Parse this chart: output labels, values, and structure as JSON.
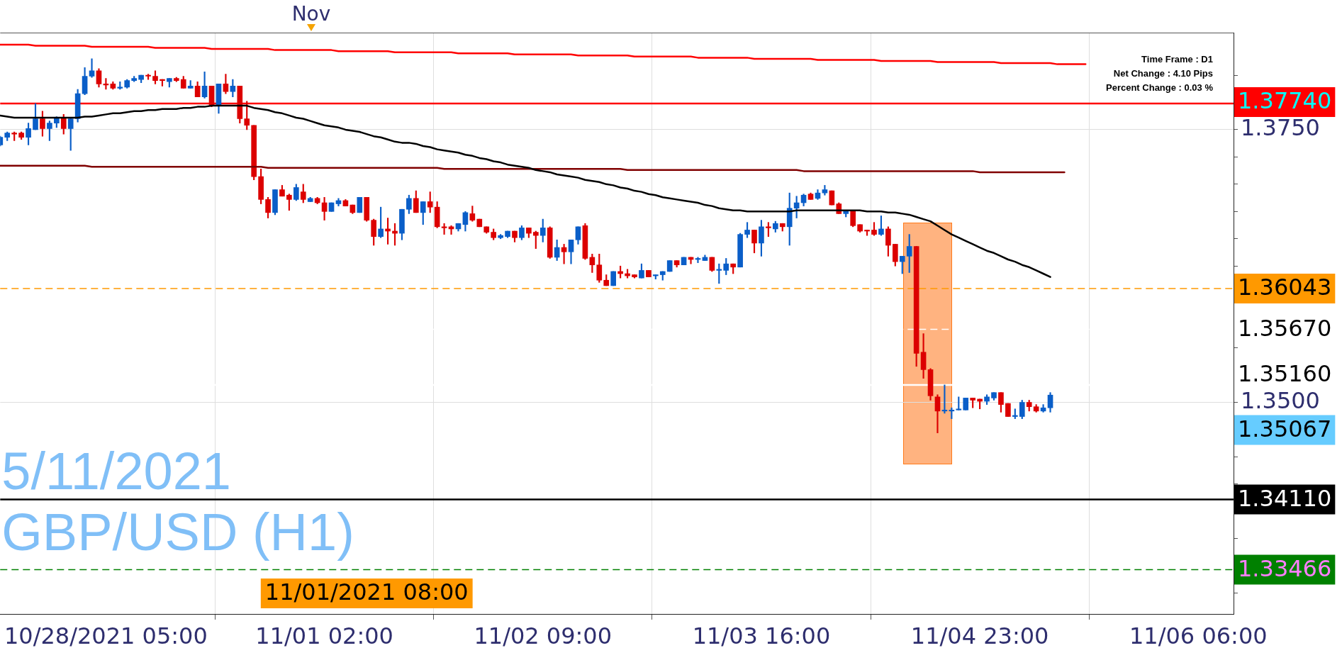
{
  "chart_data": {
    "type": "candlestick",
    "title": "GBP/USD (H1)",
    "subtitle": "5/11/2021",
    "annotations": [
      "Time Frame : D1",
      "Net Change : 4.10 Pips",
      "Percent Change : 0.03 %",
      "Nov",
      "1.35067"
    ],
    "categories": [
      null,
      null,
      null,
      null,
      null,
      null,
      null,
      null,
      null,
      null,
      null,
      null,
      null,
      null,
      null,
      "10/28/2021 05:00",
      null,
      null,
      null,
      null,
      null,
      null,
      null,
      null,
      null,
      null,
      null,
      null,
      null,
      null,
      null,
      null,
      null,
      null,
      null,
      null,
      null,
      null,
      null,
      null,
      null,
      null,
      null,
      null,
      null,
      null,
      "11/01 02:00",
      null,
      null,
      null,
      null,
      null,
      "11/01/2021 08:00",
      null,
      null,
      null,
      null,
      null,
      null,
      null,
      null,
      null,
      null,
      null,
      null,
      null,
      null,
      null,
      null,
      null,
      null,
      null,
      null,
      null,
      null,
      null,
      null,
      "11/02 09:00",
      null,
      null,
      null,
      null,
      null,
      null,
      null,
      null,
      null,
      null,
      null,
      null,
      null,
      null,
      null,
      null,
      null,
      null,
      null,
      null,
      null,
      null,
      null,
      null,
      null,
      null,
      null,
      null,
      null,
      null,
      "11/03 16:00",
      null,
      null,
      null,
      null,
      null,
      null,
      null,
      null,
      null,
      null,
      null,
      null,
      null,
      null,
      null,
      null,
      null,
      null,
      null,
      null,
      null,
      null,
      null,
      null,
      null,
      null,
      null,
      null,
      null,
      null,
      "11/04 23:00",
      null,
      null,
      null,
      null,
      null,
      null,
      null,
      null,
      null,
      null,
      null,
      null,
      null,
      null,
      null,
      null,
      null,
      null,
      null,
      null,
      null,
      null,
      null,
      null,
      null,
      null,
      null,
      null,
      null,
      null,
      "11/06 06:00",
      null,
      null,
      null,
      null,
      null
    ],
    "ylim": [
      1.3306,
      1.3839
    ],
    "yticks": [
      {
        "value": 1.3325,
        "label": null
      },
      {
        "value": 1.335,
        "label": null
      },
      {
        "value": 1.3375,
        "label": null
      },
      {
        "value": 1.34,
        "label": null
      },
      {
        "value": 1.3425,
        "label": null
      },
      {
        "value": 1.345,
        "label": null
      },
      {
        "value": 1.3475,
        "label": null
      },
      {
        "value": 1.35,
        "label": "1.3500"
      },
      {
        "value": 1.3525,
        "label": null
      },
      {
        "value": 1.355,
        "label": null
      },
      {
        "value": 1.3575,
        "label": null
      },
      {
        "value": 1.36,
        "label": null
      },
      {
        "value": 1.3625,
        "label": null
      },
      {
        "value": 1.365,
        "label": null
      },
      {
        "value": 1.3675,
        "label": null
      },
      {
        "value": 1.37,
        "label": null
      },
      {
        "value": 1.3725,
        "label": null
      },
      {
        "value": 1.375,
        "label": "1.3750"
      },
      {
        "value": 1.3775,
        "label": null
      },
      {
        "value": 1.38,
        "label": null
      }
    ],
    "grid": true,
    "marker": "none",
    "ref_lines": [
      {
        "axis": "y",
        "value": 1.3774,
        "label": "1.37740",
        "color": "#ff0000",
        "line_style": "solid"
      },
      {
        "axis": "y",
        "value": 1.36043,
        "label": "1.36043",
        "color": "#ff9900",
        "line_style": "dashed"
      },
      {
        "axis": "y",
        "value": 1.3567,
        "label": "1.35670",
        "color": "#ffffff",
        "line_style": "dashed"
      },
      {
        "axis": "y",
        "value": 1.3516,
        "label": "1.35160",
        "color": "#ffffff",
        "line_style": "solid"
      },
      {
        "axis": "y",
        "value": 1.3411,
        "label": "1.34110",
        "color": "#000000",
        "line_style": "solid"
      },
      {
        "axis": "y",
        "value": 1.33466,
        "label": "1.33466",
        "color": "#008000",
        "line_style": "dashed"
      }
    ],
    "series": [
      {
        "ohlc": [
          [
            1.3736,
            1.3744,
            1.3735,
            1.3743
          ],
          [
            1.3743,
            1.3748,
            1.374,
            1.3747
          ],
          [
            1.3747,
            1.3748,
            1.374,
            1.3746
          ],
          [
            1.3747,
            1.3748,
            1.3741,
            1.3743
          ],
          [
            1.3743,
            1.3756,
            1.3736,
            1.3751
          ],
          [
            1.375,
            1.3774,
            1.375,
            1.376
          ],
          [
            1.376,
            1.3767,
            1.3744,
            1.3751
          ],
          [
            1.3751,
            1.3758,
            1.374,
            1.3756
          ],
          [
            1.3756,
            1.3762,
            1.3752,
            1.3761
          ],
          [
            1.3761,
            1.3764,
            1.3746,
            1.3751
          ],
          [
            1.3751,
            1.3761,
            1.3731,
            1.376
          ],
          [
            1.376,
            1.3787,
            1.3757,
            1.3783
          ],
          [
            1.3783,
            1.3807,
            1.3782,
            1.3799
          ],
          [
            1.3799,
            1.3815,
            1.3798,
            1.3804
          ],
          [
            1.3804,
            1.3806,
            1.3789,
            1.3792
          ],
          [
            1.3792,
            1.3797,
            1.3787,
            1.3791
          ],
          [
            1.3792,
            1.3794,
            1.3787,
            1.3788
          ],
          [
            1.3788,
            1.3794,
            1.3787,
            1.3789
          ],
          [
            1.3789,
            1.3796,
            1.3788,
            1.3795
          ],
          [
            1.3795,
            1.3799,
            1.3794,
            1.3797
          ],
          [
            1.3796,
            1.38,
            1.3793,
            1.38
          ],
          [
            1.38,
            1.3801,
            1.3796,
            1.3799
          ],
          [
            1.3799,
            1.3804,
            1.3792,
            1.3795
          ],
          [
            1.3796,
            1.3796,
            1.379,
            1.3795
          ],
          [
            1.3794,
            1.3797,
            1.3789,
            1.3797
          ],
          [
            1.3797,
            1.3798,
            1.3794,
            1.3795
          ],
          [
            1.3796,
            1.3799,
            1.3788,
            1.3788
          ],
          [
            1.3788,
            1.3795,
            1.3788,
            1.379
          ],
          [
            1.379,
            1.3794,
            1.378,
            1.378
          ],
          [
            1.378,
            1.3803,
            1.3779,
            1.379
          ],
          [
            1.379,
            1.379,
            1.3771,
            1.3772
          ],
          [
            1.3772,
            1.3792,
            1.3765,
            1.3792
          ],
          [
            1.3792,
            1.3801,
            1.3783,
            1.3785
          ],
          [
            1.3785,
            1.3796,
            1.378,
            1.379
          ],
          [
            1.379,
            1.379,
            1.3756,
            1.376
          ],
          [
            1.376,
            1.3776,
            1.375,
            1.3754
          ],
          [
            1.3754,
            1.3754,
            1.3704,
            1.3707
          ],
          [
            1.3707,
            1.3714,
            1.3682,
            1.3686
          ],
          [
            1.3686,
            1.3688,
            1.3669,
            1.3674
          ],
          [
            1.3674,
            1.3695,
            1.3672,
            1.3695
          ],
          [
            1.3695,
            1.3699,
            1.3689,
            1.3689
          ],
          [
            1.369,
            1.3691,
            1.3676,
            1.3686
          ],
          [
            1.3686,
            1.37,
            1.3685,
            1.3697
          ],
          [
            1.3693,
            1.37,
            1.3683,
            1.3686
          ],
          [
            1.3684,
            1.3688,
            1.3684,
            1.3687
          ],
          [
            1.3687,
            1.3688,
            1.3682,
            1.3683
          ],
          [
            1.3683,
            1.3688,
            1.3667,
            1.3675
          ],
          [
            1.3675,
            1.3683,
            1.3675,
            1.3683
          ],
          [
            1.3682,
            1.3687,
            1.368,
            1.3685
          ],
          [
            1.3685,
            1.3686,
            1.368,
            1.368
          ],
          [
            1.3681,
            1.3681,
            1.3673,
            1.3674
          ],
          [
            1.3674,
            1.3688,
            1.3674,
            1.3688
          ],
          [
            1.3688,
            1.3688,
            1.3666,
            1.3667
          ],
          [
            1.3667,
            1.3668,
            1.3644,
            1.3652
          ],
          [
            1.3652,
            1.3679,
            1.3651,
            1.3659
          ],
          [
            1.3659,
            1.3669,
            1.3645,
            1.3657
          ],
          [
            1.3657,
            1.3664,
            1.3644,
            1.3655
          ],
          [
            1.3655,
            1.3677,
            1.3649,
            1.3677
          ],
          [
            1.3677,
            1.369,
            1.3673,
            1.3687
          ],
          [
            1.3687,
            1.3694,
            1.3674,
            1.3674
          ],
          [
            1.3674,
            1.3684,
            1.3663,
            1.3684
          ],
          [
            1.3684,
            1.3693,
            1.3674,
            1.3679
          ],
          [
            1.3679,
            1.3684,
            1.366,
            1.3661
          ],
          [
            1.3661,
            1.3664,
            1.3654,
            1.366
          ],
          [
            1.3661,
            1.3662,
            1.3654,
            1.3659
          ],
          [
            1.3659,
            1.3664,
            1.3657,
            1.3664
          ],
          [
            1.3663,
            1.3675,
            1.3657,
            1.3674
          ],
          [
            1.3673,
            1.368,
            1.3666,
            1.3667
          ],
          [
            1.3668,
            1.3668,
            1.3661,
            1.3661
          ],
          [
            1.3661,
            1.3661,
            1.3655,
            1.3656
          ],
          [
            1.3656,
            1.3659,
            1.3649,
            1.3651
          ],
          [
            1.3651,
            1.3654,
            1.365,
            1.3653
          ],
          [
            1.3652,
            1.3657,
            1.3651,
            1.3657
          ],
          [
            1.3657,
            1.3657,
            1.3647,
            1.3651
          ],
          [
            1.3651,
            1.3662,
            1.3649,
            1.366
          ],
          [
            1.366,
            1.366,
            1.3651,
            1.3655
          ],
          [
            1.3656,
            1.3657,
            1.3641,
            1.3653
          ],
          [
            1.3653,
            1.3668,
            1.3647,
            1.366
          ],
          [
            1.366,
            1.3661,
            1.3632,
            1.3633
          ],
          [
            1.3633,
            1.3649,
            1.363,
            1.3642
          ],
          [
            1.3642,
            1.3645,
            1.3627,
            1.3638
          ],
          [
            1.3638,
            1.3649,
            1.3627,
            1.3649
          ],
          [
            1.3649,
            1.3661,
            1.3645,
            1.3661
          ],
          [
            1.3662,
            1.3664,
            1.3631,
            1.3632
          ],
          [
            1.3633,
            1.3636,
            1.3619,
            1.3626
          ],
          [
            1.3626,
            1.3636,
            1.361,
            1.3612
          ],
          [
            1.3612,
            1.3617,
            1.3607,
            1.3607
          ],
          [
            1.3607,
            1.362,
            1.3607,
            1.362
          ],
          [
            1.362,
            1.3625,
            1.3614,
            1.3618
          ],
          [
            1.3618,
            1.3622,
            1.3614,
            1.3616
          ],
          [
            1.3617,
            1.3617,
            1.3614,
            1.3615
          ],
          [
            1.3614,
            1.3627,
            1.3614,
            1.3621
          ],
          [
            1.3621,
            1.3621,
            1.3615,
            1.3615
          ],
          [
            1.3616,
            1.3617,
            1.3613,
            1.3617
          ],
          [
            1.3617,
            1.362,
            1.3612,
            1.362
          ],
          [
            1.362,
            1.363,
            1.362,
            1.363
          ],
          [
            1.363,
            1.363,
            1.3624,
            1.3626
          ],
          [
            1.3626,
            1.3633,
            1.3626,
            1.3633
          ],
          [
            1.3633,
            1.3633,
            1.3627,
            1.3631
          ],
          [
            1.3631,
            1.3633,
            1.3628,
            1.3631
          ],
          [
            1.363,
            1.3635,
            1.363,
            1.3633
          ],
          [
            1.3633,
            1.3633,
            1.362,
            1.3621
          ],
          [
            1.3621,
            1.3627,
            1.3609,
            1.3621
          ],
          [
            1.3621,
            1.3632,
            1.3617,
            1.3627
          ],
          [
            1.3627,
            1.3627,
            1.3618,
            1.3624
          ],
          [
            1.3624,
            1.3655,
            1.3624,
            1.3654
          ],
          [
            1.3654,
            1.3665,
            1.3651,
            1.3658
          ],
          [
            1.3658,
            1.3658,
            1.3637,
            1.3646
          ],
          [
            1.3646,
            1.3667,
            1.3634,
            1.3661
          ],
          [
            1.3661,
            1.3665,
            1.3652,
            1.366
          ],
          [
            1.3659,
            1.3666,
            1.3656,
            1.3664
          ],
          [
            1.3664,
            1.3664,
            1.3657,
            1.3661
          ],
          [
            1.3661,
            1.3692,
            1.3644,
            1.3678
          ],
          [
            1.3678,
            1.3689,
            1.3669,
            1.3683
          ],
          [
            1.3683,
            1.3691,
            1.368,
            1.369
          ],
          [
            1.3691,
            1.3692,
            1.3686,
            1.3686
          ],
          [
            1.3687,
            1.3695,
            1.3686,
            1.3692
          ],
          [
            1.3692,
            1.3699,
            1.369,
            1.3695
          ],
          [
            1.3694,
            1.3694,
            1.3681,
            1.3681
          ],
          [
            1.3682,
            1.3683,
            1.3673,
            1.3673
          ],
          [
            1.3673,
            1.3676,
            1.367,
            1.3675
          ],
          [
            1.3675,
            1.3675,
            1.3661,
            1.3662
          ],
          [
            1.3663,
            1.3663,
            1.3656,
            1.3657
          ],
          [
            1.3658,
            1.3658,
            1.3653,
            1.3657
          ],
          [
            1.3658,
            1.3665,
            1.3653,
            1.3654
          ],
          [
            1.3654,
            1.3671,
            1.3653,
            1.3659
          ],
          [
            1.3659,
            1.3661,
            1.3634,
            1.3644
          ],
          [
            1.3645,
            1.3645,
            1.3625,
            1.3629
          ],
          [
            1.3629,
            1.3634,
            1.3618,
            1.3634
          ],
          [
            1.3634,
            1.3654,
            1.3619,
            1.3643
          ],
          [
            1.3643,
            1.3643,
            1.3533,
            1.3545
          ],
          [
            1.3546,
            1.3563,
            1.3522,
            1.353
          ],
          [
            1.353,
            1.3531,
            1.3502,
            1.3506
          ],
          [
            1.3505,
            1.3507,
            1.3472,
            1.3492
          ],
          [
            1.3492,
            1.3516,
            1.349,
            1.3492
          ],
          [
            1.3492,
            1.3495,
            1.3485,
            1.3493
          ],
          [
            1.3493,
            1.3505,
            1.3493,
            1.3493
          ],
          [
            1.3493,
            1.3504,
            1.3493,
            1.3504
          ],
          [
            1.3504,
            1.3504,
            1.3495,
            1.3502
          ],
          [
            1.3503,
            1.3503,
            1.3494,
            1.3501
          ],
          [
            1.3501,
            1.3507,
            1.3498,
            1.3505
          ],
          [
            1.3504,
            1.3509,
            1.3502,
            1.3509
          ],
          [
            1.3509,
            1.3509,
            1.3491,
            1.3498
          ],
          [
            1.3499,
            1.3499,
            1.3487,
            1.3487
          ],
          [
            1.3487,
            1.3494,
            1.3485,
            1.3488
          ],
          [
            1.3487,
            1.3502,
            1.3485,
            1.35
          ],
          [
            1.35,
            1.3502,
            1.3492,
            1.3496
          ],
          [
            1.3496,
            1.3498,
            1.3491,
            1.3492
          ],
          [
            1.3492,
            1.3498,
            1.3491,
            1.3495
          ],
          [
            1.3495,
            1.3509,
            1.3491,
            1.35067
          ],
          null,
          null,
          null,
          null,
          null,
          null,
          null,
          null,
          null,
          null,
          null,
          null,
          null,
          null,
          null,
          null,
          null,
          null,
          null,
          null,
          null,
          null,
          null,
          null,
          null,
          null
        ],
        "colors": [
          "#0a5ec8",
          "#0a5ec8",
          "#dc0000",
          "#dc0000",
          "#0a5ec8",
          "#0a5ec8",
          "#dc0000",
          "#0a5ec8",
          "#0a5ec8",
          "#dc0000",
          "#0a5ec8",
          "#0a5ec8",
          "#0a5ec8",
          "#0a5ec8",
          "#dc0000",
          "#dc0000",
          "#dc0000",
          "#0a5ec8",
          "#0a5ec8",
          "#0a5ec8",
          "#0a5ec8",
          "#dc0000",
          "#dc0000",
          "#dc0000",
          "#0a5ec8",
          "#dc0000",
          "#dc0000",
          "#0a5ec8",
          "#dc0000",
          "#0a5ec8",
          "#dc0000",
          "#0a5ec8",
          "#dc0000",
          "#0a5ec8",
          "#dc0000",
          "#dc0000",
          "#dc0000",
          "#dc0000",
          "#dc0000",
          "#0a5ec8",
          "#dc0000",
          "#dc0000",
          "#0a5ec8",
          "#dc0000",
          "#0a5ec8",
          "#dc0000",
          "#dc0000",
          "#0a5ec8",
          "#0a5ec8",
          "#dc0000",
          "#dc0000",
          "#0a5ec8",
          "#dc0000",
          "#dc0000",
          "#0a5ec8",
          "#dc0000",
          "#dc0000",
          "#0a5ec8",
          "#0a5ec8",
          "#dc0000",
          "#0a5ec8",
          "#dc0000",
          "#dc0000",
          "#dc0000",
          "#dc0000",
          "#0a5ec8",
          "#0a5ec8",
          "#dc0000",
          "#dc0000",
          "#dc0000",
          "#dc0000",
          "#0a5ec8",
          "#0a5ec8",
          "#dc0000",
          "#0a5ec8",
          "#dc0000",
          "#dc0000",
          "#0a5ec8",
          "#dc0000",
          "#0a5ec8",
          "#dc0000",
          "#0a5ec8",
          "#0a5ec8",
          "#dc0000",
          "#dc0000",
          "#dc0000",
          "#dc0000",
          "#0a5ec8",
          "#dc0000",
          "#dc0000",
          "#dc0000",
          "#0a5ec8",
          "#dc0000",
          "#0a5ec8",
          "#0a5ec8",
          "#0a5ec8",
          "#dc0000",
          "#0a5ec8",
          "#dc0000",
          "#0a5ec8",
          "#0a5ec8",
          "#dc0000",
          "#0a5ec8",
          "#0a5ec8",
          "#dc0000",
          "#0a5ec8",
          "#0a5ec8",
          "#dc0000",
          "#0a5ec8",
          "#dc0000",
          "#0a5ec8",
          "#dc0000",
          "#0a5ec8",
          "#0a5ec8",
          "#0a5ec8",
          "#dc0000",
          "#0a5ec8",
          "#0a5ec8",
          "#dc0000",
          "#dc0000",
          "#0a5ec8",
          "#dc0000",
          "#dc0000",
          "#dc0000",
          "#dc0000",
          "#0a5ec8",
          "#dc0000",
          "#dc0000",
          "#0a5ec8",
          "#0a5ec8",
          "#dc0000",
          "#dc0000",
          "#dc0000",
          "#dc0000",
          "#0a5ec8",
          "#0a5ec8",
          "#0a5ec8",
          "#0a5ec8",
          "#dc0000",
          "#dc0000",
          "#0a5ec8",
          "#0a5ec8",
          "#dc0000",
          "#dc0000",
          "#0a5ec8",
          "#0a5ec8",
          "#dc0000",
          "#dc0000",
          "#0a5ec8",
          "#0a5ec8",
          null,
          null,
          null,
          null,
          null,
          null,
          null,
          null,
          null,
          null,
          null,
          null,
          null,
          null,
          null,
          null,
          null,
          null,
          null,
          null,
          null,
          null,
          null,
          null,
          null,
          null
        ]
      },
      {
        "type": "line",
        "color": "#000000",
        "values": [
          1.3763,
          1.3762,
          1.3761,
          1.3761,
          1.3761,
          1.3761,
          1.3761,
          1.3761,
          1.3761,
          1.3761,
          1.3761,
          1.3761,
          1.3762,
          1.3762,
          1.3763,
          1.3764,
          1.3765,
          1.3765,
          1.3766,
          1.3767,
          1.3767,
          1.3768,
          1.3768,
          1.3769,
          1.3769,
          1.3769,
          1.377,
          1.377,
          1.3771,
          1.3771,
          1.3772,
          1.3772,
          1.3772,
          1.3772,
          1.3772,
          1.3772,
          1.377,
          1.3769,
          1.3768,
          1.3766,
          1.3765,
          1.3763,
          1.3761,
          1.376,
          1.3758,
          1.3756,
          1.3754,
          1.3753,
          1.3752,
          1.375,
          1.3749,
          1.3748,
          1.3746,
          1.3744,
          1.3743,
          1.3741,
          1.3739,
          1.3738,
          1.3738,
          1.3737,
          1.3735,
          1.3734,
          1.3732,
          1.3731,
          1.373,
          1.3729,
          1.3727,
          1.3726,
          1.3724,
          1.3723,
          1.3721,
          1.372,
          1.3718,
          1.3717,
          1.3716,
          1.3715,
          1.3713,
          1.3712,
          1.3711,
          1.3709,
          1.3708,
          1.3707,
          1.3706,
          1.3704,
          1.3703,
          1.3702,
          1.37,
          1.3699,
          1.3697,
          1.3696,
          1.3694,
          1.3693,
          1.3691,
          1.369,
          1.3688,
          1.3687,
          1.3686,
          1.3685,
          1.3684,
          1.3683,
          1.3681,
          1.368,
          1.3678,
          1.3677,
          1.3676,
          1.3676,
          1.3675,
          1.3675,
          1.3675,
          1.3675,
          1.3675,
          1.3675,
          1.3675,
          1.3676,
          1.3676,
          1.3676,
          1.3676,
          1.3676,
          1.3676,
          1.3676,
          1.3676,
          1.3676,
          1.3676,
          1.3675,
          1.3675,
          1.3675,
          1.3674,
          1.3674,
          1.3673,
          1.3672,
          1.367,
          1.3668,
          1.3666,
          1.3662,
          1.3658,
          1.3654,
          1.3651,
          1.3648,
          1.3645,
          1.3642,
          1.3639,
          1.3637,
          1.3634,
          1.3631,
          1.3629,
          1.3626,
          1.3624,
          1.3621,
          1.3618,
          1.3615,
          null,
          null,
          null,
          null,
          null,
          null,
          null,
          null,
          null,
          null,
          null,
          null,
          null,
          null,
          null,
          null,
          null,
          null,
          null,
          null,
          null,
          null,
          null,
          null,
          null,
          null
        ]
      },
      {
        "type": "line",
        "color": "#ff0000",
        "values": [
          1.3828,
          1.3828,
          1.3828,
          1.3828,
          1.3828,
          1.3827,
          1.3827,
          1.3827,
          1.3827,
          1.3827,
          1.3827,
          1.3827,
          1.3827,
          1.3826,
          1.3826,
          1.3826,
          1.3826,
          1.3826,
          1.3826,
          1.3826,
          1.3826,
          1.3826,
          1.3825,
          1.3825,
          1.3825,
          1.3825,
          1.3825,
          1.3825,
          1.3825,
          1.3825,
          1.3824,
          1.3824,
          1.3824,
          1.3824,
          1.3824,
          1.3824,
          1.3824,
          1.3824,
          1.3824,
          1.3823,
          1.3823,
          1.3823,
          1.3823,
          1.3823,
          1.3823,
          1.3823,
          1.3823,
          1.3823,
          1.3822,
          1.3822,
          1.3822,
          1.3822,
          1.3822,
          1.3822,
          1.3822,
          1.3822,
          1.3821,
          1.3821,
          1.3821,
          1.3821,
          1.3821,
          1.3821,
          1.3821,
          1.3821,
          1.3821,
          1.382,
          1.382,
          1.382,
          1.382,
          1.382,
          1.382,
          1.382,
          1.382,
          1.3819,
          1.3819,
          1.3819,
          1.3819,
          1.3819,
          1.3819,
          1.3819,
          1.3819,
          1.3819,
          1.3818,
          1.3818,
          1.3818,
          1.3818,
          1.3818,
          1.3818,
          1.3818,
          1.3818,
          1.3817,
          1.3817,
          1.3817,
          1.3817,
          1.3817,
          1.3817,
          1.3817,
          1.3817,
          1.3817,
          1.3816,
          1.3816,
          1.3816,
          1.3816,
          1.3816,
          1.3816,
          1.3816,
          1.3816,
          1.3815,
          1.3815,
          1.3815,
          1.3815,
          1.3815,
          1.3815,
          1.3815,
          1.3815,
          1.3815,
          1.3814,
          1.3814,
          1.3814,
          1.3814,
          1.3814,
          1.3814,
          1.3814,
          1.3814,
          1.3814,
          1.3813,
          1.3813,
          1.3813,
          1.3813,
          1.3813,
          1.3813,
          1.3813,
          1.3813,
          1.3812,
          1.3812,
          1.3812,
          1.3812,
          1.3812,
          1.3812,
          1.3812,
          1.3812,
          1.3812,
          1.3811,
          1.3811,
          1.3811,
          1.3811,
          1.3811,
          1.3811,
          1.3811,
          1.3811,
          1.381,
          1.381,
          1.381,
          1.381,
          1.381,
          null,
          null,
          null,
          null,
          null,
          null,
          null,
          null,
          null,
          null,
          null,
          null,
          null,
          null,
          null,
          null,
          null,
          null,
          null,
          null,
          null
        ]
      },
      {
        "type": "line",
        "color": "#800000",
        "values": [
          1.3717,
          1.3717,
          1.3717,
          1.3717,
          1.3717,
          1.3717,
          1.3717,
          1.3717,
          1.3717,
          1.3717,
          1.3717,
          1.3717,
          1.3717,
          1.3716,
          1.3716,
          1.3716,
          1.3716,
          1.3716,
          1.3716,
          1.3716,
          1.3716,
          1.3716,
          1.3716,
          1.3716,
          1.3716,
          1.3716,
          1.3716,
          1.3716,
          1.3716,
          1.3716,
          1.3716,
          1.3716,
          1.3716,
          1.3716,
          1.3716,
          1.3716,
          1.3716,
          1.3716,
          1.3715,
          1.3715,
          1.3715,
          1.3715,
          1.3715,
          1.3715,
          1.3715,
          1.3715,
          1.3715,
          1.3715,
          1.3715,
          1.3715,
          1.3715,
          1.3715,
          1.3715,
          1.3715,
          1.3715,
          1.3715,
          1.3715,
          1.3715,
          1.3715,
          1.3715,
          1.3715,
          1.3715,
          1.3715,
          1.3714,
          1.3714,
          1.3714,
          1.3714,
          1.3714,
          1.3714,
          1.3714,
          1.3714,
          1.3714,
          1.3714,
          1.3714,
          1.3714,
          1.3714,
          1.3714,
          1.3714,
          1.3714,
          1.3714,
          1.3714,
          1.3714,
          1.3714,
          1.3714,
          1.3714,
          1.3714,
          1.3714,
          1.3714,
          1.3714,
          1.3713,
          1.3713,
          1.3713,
          1.3713,
          1.3713,
          1.3713,
          1.3713,
          1.3713,
          1.3713,
          1.3713,
          1.3713,
          1.3713,
          1.3713,
          1.3713,
          1.3713,
          1.3713,
          1.3713,
          1.3713,
          1.3713,
          1.3713,
          1.3713,
          1.3713,
          1.3713,
          1.3713,
          1.3713,
          1.3712,
          1.3712,
          1.3712,
          1.3712,
          1.3712,
          1.3712,
          1.3712,
          1.3712,
          1.3712,
          1.3712,
          1.3712,
          1.3712,
          1.3712,
          1.3712,
          1.3712,
          1.3712,
          1.3712,
          1.3712,
          1.3712,
          1.3712,
          1.3712,
          1.3712,
          1.3712,
          1.3712,
          1.3712,
          1.3711,
          1.3711,
          1.3711,
          1.3711,
          1.3711,
          1.3711,
          1.3711,
          1.3711,
          1.3711,
          1.3711,
          1.3711,
          1.3711,
          1.3711,
          null,
          null,
          null,
          null,
          null,
          null,
          null,
          null,
          null,
          null,
          null,
          null,
          null,
          null,
          null,
          null,
          null,
          null,
          null,
          null,
          null,
          null,
          null,
          null
        ]
      }
    ]
  }
}
